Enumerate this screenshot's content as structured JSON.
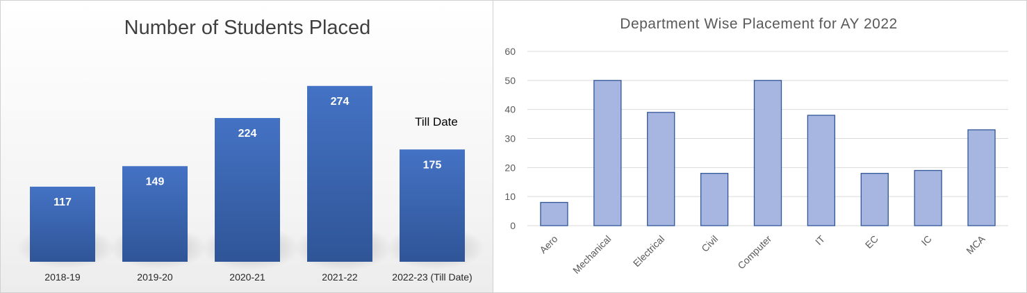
{
  "chart_data": [
    {
      "type": "bar",
      "title": "Number of Students Placed",
      "categories": [
        "2018-19",
        "2019-20",
        "2020-21",
        "2021-22",
        "2022-23 (Till Date)"
      ],
      "values": [
        117,
        149,
        224,
        274,
        175
      ],
      "data_labels": [
        "117",
        "149",
        "224",
        "274",
        "175"
      ],
      "annotation": "Till Date",
      "ylim": [
        0,
        330
      ],
      "grid": false,
      "colors": {
        "bar_top": "#4472c4",
        "bar_bottom": "#2f5597",
        "label": "#ffffff"
      }
    },
    {
      "type": "bar",
      "title": "Department Wise Placement for AY 2022",
      "categories": [
        "Aero",
        "Mechanical",
        "Electrical",
        "Civil",
        "Computer",
        "IT",
        "EC",
        "IC",
        "MCA"
      ],
      "values": [
        8,
        50,
        39,
        18,
        50,
        38,
        18,
        19,
        33
      ],
      "yticks": [
        "0",
        "10",
        "20",
        "30",
        "40",
        "50",
        "60"
      ],
      "ylim": [
        0,
        60
      ],
      "grid": true,
      "colors": {
        "bar_fill": "#a6b6e0",
        "bar_stroke": "#2f5597",
        "grid": "#d9d9d9"
      }
    }
  ]
}
